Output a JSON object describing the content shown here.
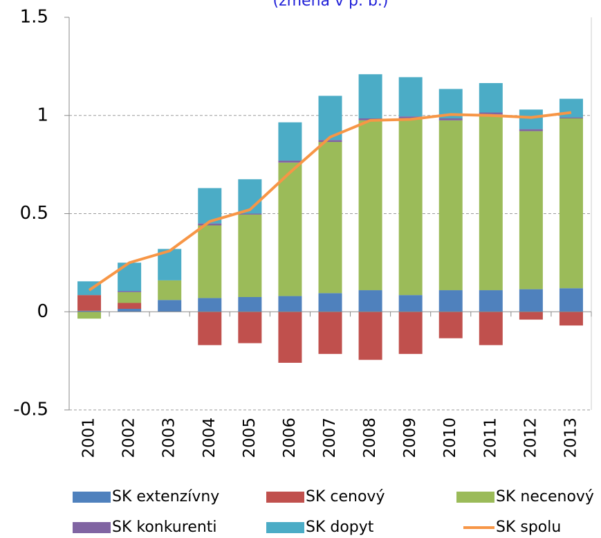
{
  "chart_data": {
    "type": "bar",
    "title": "(zmena v p. b.)",
    "categories": [
      "2001",
      "2002",
      "2003",
      "2004",
      "2005",
      "2006",
      "2007",
      "2008",
      "2009",
      "2010",
      "2011",
      "2012",
      "2013"
    ],
    "series": [
      {
        "name": "SK extenzívny",
        "color": "#4f81bd",
        "values": [
          0.005,
          0.015,
          0.06,
          0.07,
          0.075,
          0.08,
          0.095,
          0.11,
          0.085,
          0.11,
          0.11,
          0.115,
          0.12
        ]
      },
      {
        "name": "SK cenový",
        "color": "#c0504d",
        "values": [
          0.08,
          0.03,
          0,
          -0.17,
          -0.16,
          -0.26,
          -0.215,
          -0.245,
          -0.215,
          -0.135,
          -0.17,
          -0.04,
          -0.07
        ]
      },
      {
        "name": "SK necenový",
        "color": "#9bbb59",
        "values": [
          -0.035,
          0.055,
          0.1,
          0.37,
          0.42,
          0.68,
          0.77,
          0.865,
          0.9,
          0.865,
          0.895,
          0.805,
          0.865
        ]
      },
      {
        "name": "SK konkurenti",
        "color": "#8064a2",
        "values": [
          0,
          0.005,
          0,
          0.01,
          0.005,
          0.01,
          0.01,
          0.01,
          0.01,
          0.01,
          0.01,
          0.01,
          0.005
        ]
      },
      {
        "name": "SK dopyt",
        "color": "#4bacc6",
        "values": [
          0.07,
          0.145,
          0.16,
          0.18,
          0.175,
          0.195,
          0.225,
          0.225,
          0.2,
          0.15,
          0.15,
          0.1,
          0.095
        ]
      },
      {
        "name": "SK spolu",
        "color": "#f79646",
        "kind": "line",
        "values": [
          0.11,
          0.25,
          0.31,
          0.46,
          0.52,
          0.71,
          0.89,
          0.975,
          0.98,
          1.005,
          1.0,
          0.99,
          1.015
        ]
      }
    ],
    "ylim": [
      -0.5,
      1.5
    ],
    "yticks": [
      -0.5,
      0,
      0.5,
      1,
      1.5
    ],
    "grid": true
  }
}
